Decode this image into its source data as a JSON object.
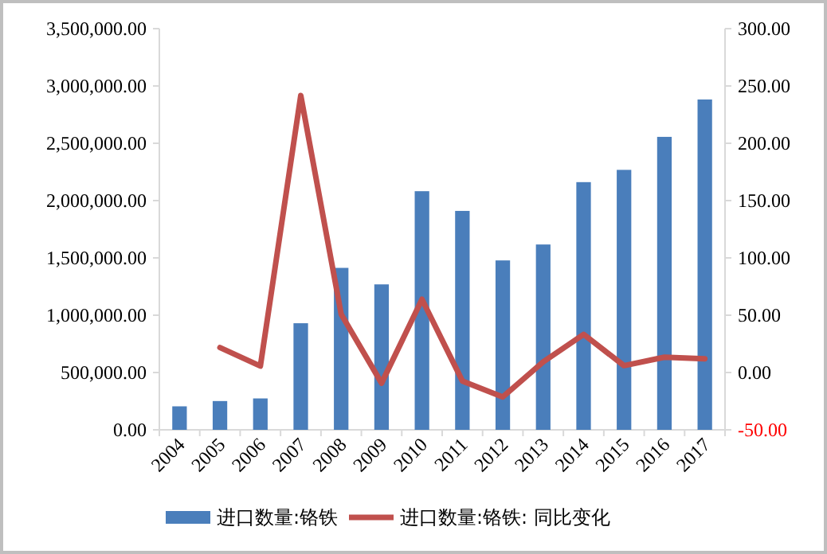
{
  "chart_data": {
    "type": "bar",
    "categories": [
      "2004",
      "2005",
      "2006",
      "2007",
      "2008",
      "2009",
      "2010",
      "2011",
      "2012",
      "2013",
      "2014",
      "2015",
      "2016",
      "2017"
    ],
    "series": [
      {
        "name": "进口数量:铬铁",
        "color": "#4a7ebb",
        "values": [
          205000,
          251000,
          274000,
          930000,
          1413000,
          1269000,
          2082000,
          1910000,
          1478000,
          1617000,
          2161000,
          2268000,
          2556000,
          2882000
        ]
      },
      {
        "name": "进口数量:铬铁: 同比变化",
        "type": "line",
        "axis": "y2",
        "color": "#c0504d",
        "values": [
          null,
          21.8,
          5.6,
          241.7,
          50.9,
          -9.3,
          63.9,
          -7.4,
          -21.3,
          9.3,
          33.3,
          6.0,
          13.4,
          12.0
        ]
      }
    ],
    "ylim": [
      0,
      3500000
    ],
    "yticks": [
      {
        "value": 0,
        "label": "0.00"
      },
      {
        "value": 500000,
        "label": "500,000.00"
      },
      {
        "value": 1000000,
        "label": "1,000,000.00"
      },
      {
        "value": 1500000,
        "label": "1,500,000.00"
      },
      {
        "value": 2000000,
        "label": "2,000,000.00"
      },
      {
        "value": 2500000,
        "label": "2,500,000.00"
      },
      {
        "value": 3000000,
        "label": "3,000,000.00"
      },
      {
        "value": 3500000,
        "label": "3,500,000.00"
      }
    ],
    "y2lim": [
      -50,
      300
    ],
    "y2ticks": [
      {
        "value": -50,
        "label": "-50.00"
      },
      {
        "value": 0,
        "label": "0.00"
      },
      {
        "value": 50,
        "label": "50.00"
      },
      {
        "value": 100,
        "label": "100.00"
      },
      {
        "value": 150,
        "label": "150.00"
      },
      {
        "value": 200,
        "label": "200.00"
      },
      {
        "value": 250,
        "label": "250.00"
      },
      {
        "value": 300,
        "label": "300.00"
      }
    ],
    "grid": false,
    "legend": "bottom",
    "marker": "none",
    "line_style": "solid"
  }
}
